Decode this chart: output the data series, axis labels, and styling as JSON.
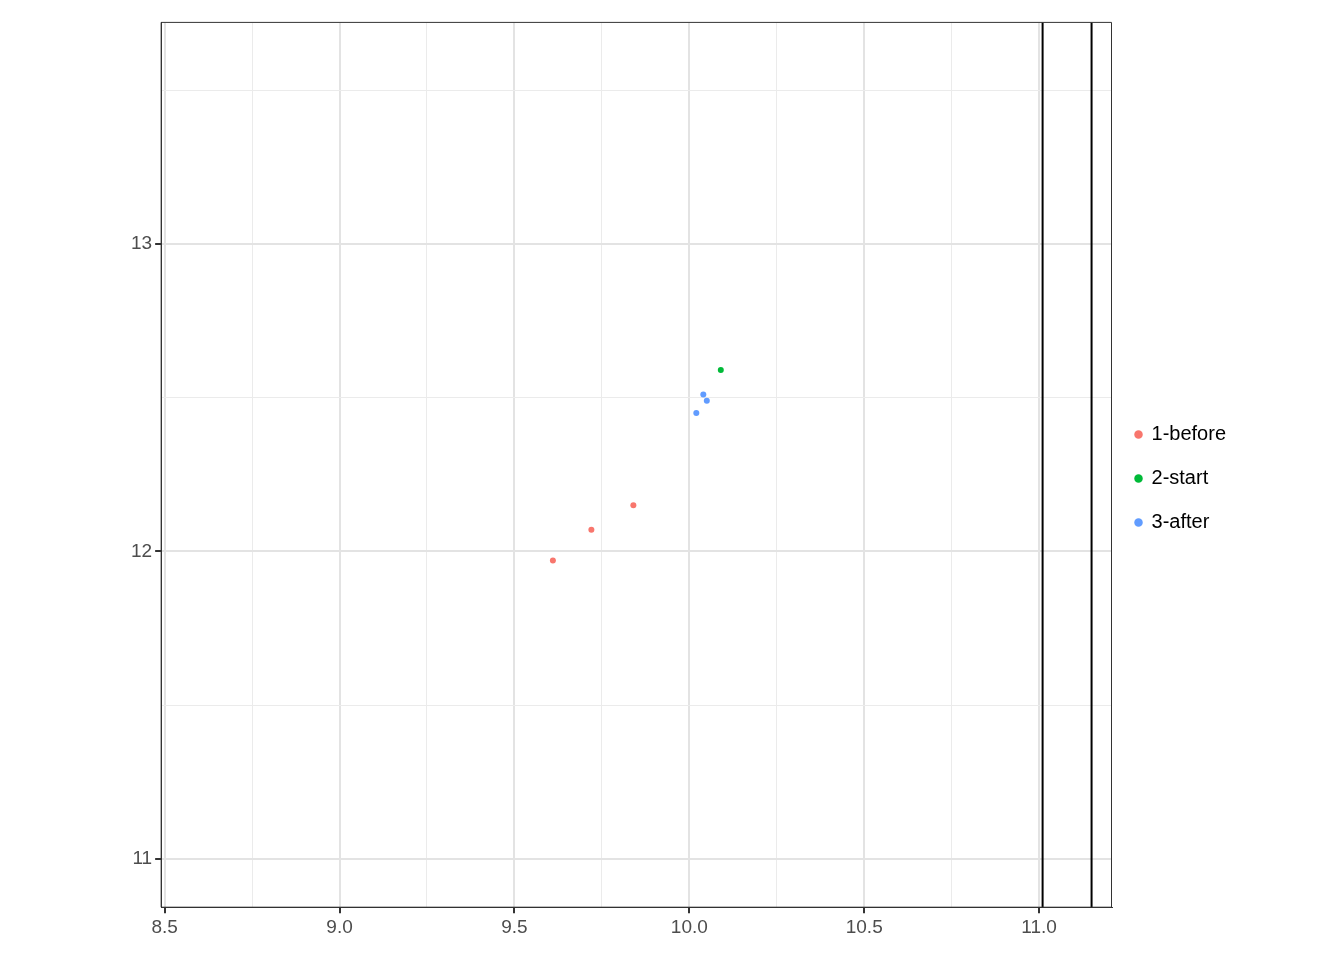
{
  "chart_data": {
    "type": "scatter",
    "legend": "right",
    "grid": true,
    "marker": "circle",
    "xlim": [
      8.49,
      11.207
    ],
    "ylim": [
      10.843,
      13.72
    ],
    "xticks": [
      {
        "value": 8.5,
        "label": "8.5"
      },
      {
        "value": 8.75,
        "label": null
      },
      {
        "value": 9,
        "label": "9.0"
      },
      {
        "value": 9.25,
        "label": null
      },
      {
        "value": 9.5,
        "label": "9.5"
      },
      {
        "value": 9.75,
        "label": null
      },
      {
        "value": 10,
        "label": "10.0"
      },
      {
        "value": 10.25,
        "label": null
      },
      {
        "value": 10.5,
        "label": "10.5"
      },
      {
        "value": 10.75,
        "label": null
      },
      {
        "value": 11,
        "label": "11.0"
      }
    ],
    "yticks": [
      11,
      {
        "value": 11.5,
        "label": null
      },
      12,
      {
        "value": 12.5,
        "label": null
      },
      13,
      {
        "value": 13.5,
        "label": null
      }
    ],
    "series": [
      {
        "name": "1-before",
        "color": "#f8766d",
        "x": [
          9.61,
          9.72,
          9.84
        ],
        "values": [
          11.97,
          12.07,
          12.15
        ]
      },
      {
        "name": "2-start",
        "color": "#00ba38",
        "x": [
          10.09
        ],
        "values": [
          12.59
        ]
      },
      {
        "name": "3-after",
        "color": "#619cff",
        "x": [
          10.04,
          10.05,
          10.02
        ],
        "values": [
          12.51,
          12.49,
          12.45
        ]
      }
    ],
    "ref_lines": [
      {
        "axis": "x",
        "value": 11.01,
        "label": null,
        "color": "#000000"
      },
      {
        "axis": "x",
        "value": 11.15,
        "label": null,
        "color": "#000000"
      }
    ]
  }
}
